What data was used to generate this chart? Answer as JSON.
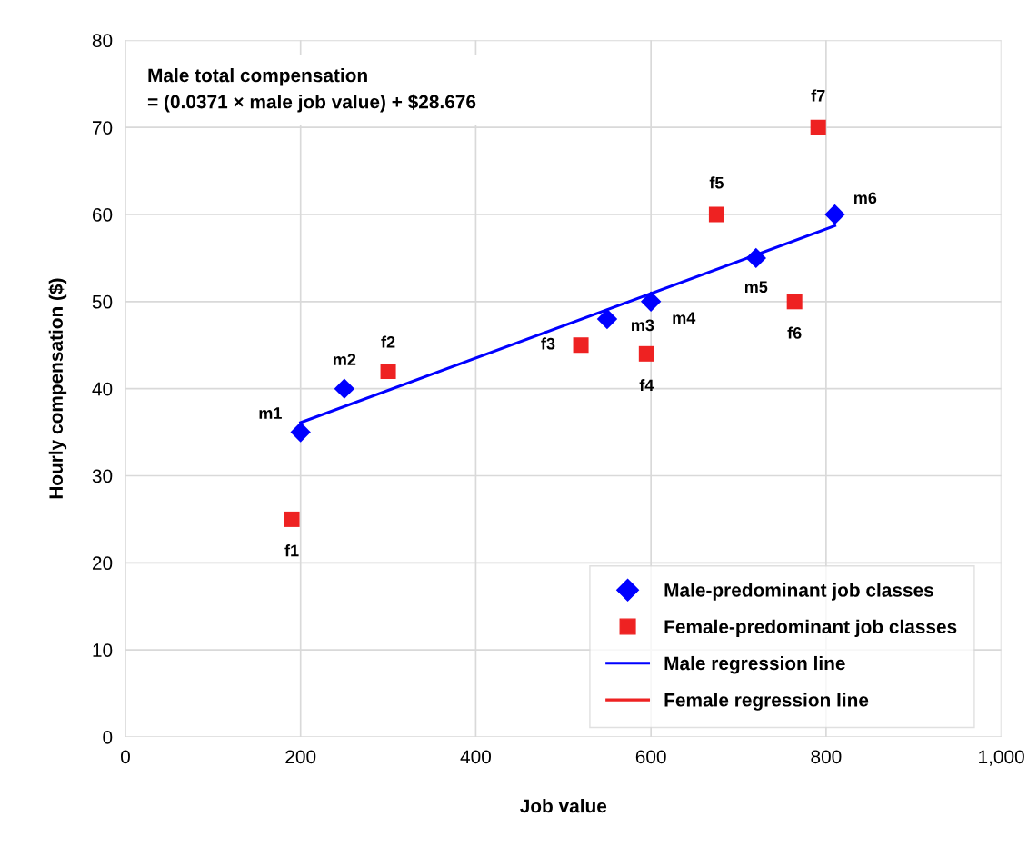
{
  "chart_data": {
    "type": "scatter",
    "xlabel": "Job value",
    "ylabel": "Hourly compensation ($)",
    "xlim": [
      0,
      1000
    ],
    "xticks": [
      0,
      200,
      400,
      600,
      800,
      {
        "value": 1000,
        "label": "1,000"
      }
    ],
    "ylim": [
      0,
      80
    ],
    "yticks": [
      0,
      10,
      20,
      30,
      40,
      50,
      60,
      70,
      80
    ],
    "grid": true,
    "legend": "bottom right",
    "series": [
      {
        "name": "Male-predominant job classes",
        "marker": "diamond",
        "color": "#0000ff",
        "x": [
          200,
          250,
          550,
          600,
          720,
          810
        ],
        "values": [
          35,
          40,
          48,
          50,
          55,
          60
        ]
      },
      {
        "name": "Female-predominant job classes",
        "marker": "square",
        "color": "#ee2222",
        "x": [
          190,
          300,
          520,
          595,
          675,
          764,
          791
        ],
        "values": [
          25,
          42,
          45,
          44,
          60,
          50,
          70
        ]
      },
      {
        "name": "Male regression line",
        "type": "line",
        "color": "#0000ff",
        "x": [
          200,
          810
        ],
        "values": [
          36.1,
          58.7
        ]
      },
      {
        "name": "Female regression line",
        "type": "line",
        "color": "#ee2222"
      }
    ],
    "annotations": [
      "Male total compensation\n= (0.0371 × male job value) + $28.676",
      {
        "text": "m1",
        "x": 200,
        "y": 35
      },
      {
        "text": "m2",
        "x": 250,
        "y": 40
      },
      {
        "text": "m3",
        "x": 550,
        "y": 48
      },
      {
        "text": "m4",
        "x": 600,
        "y": 50
      },
      {
        "text": "m5",
        "x": 720,
        "y": 55
      },
      {
        "text": "m6",
        "x": 810,
        "y": 60
      },
      {
        "text": "f1",
        "x": 190,
        "y": 25
      },
      {
        "text": "f2",
        "x": 300,
        "y": 42
      },
      {
        "text": "f3",
        "x": 520,
        "y": 45
      },
      {
        "text": "f4",
        "x": 595,
        "y": 44
      },
      {
        "text": "f5",
        "x": 675,
        "y": 60
      },
      {
        "text": "f6",
        "x": 764,
        "y": 50
      },
      {
        "text": "f7",
        "x": 791,
        "y": 70
      }
    ]
  }
}
